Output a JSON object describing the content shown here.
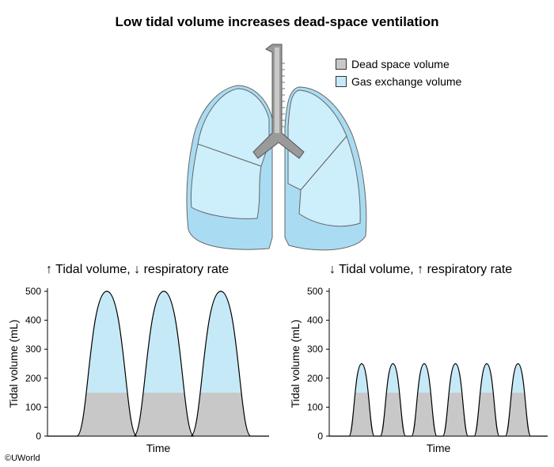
{
  "title": "Low tidal volume increases dead-space ventilation",
  "legend": [
    {
      "label": "Dead space volume",
      "color": "#c8c8c8"
    },
    {
      "label": "Gas exchange volume",
      "color": "#c6e9f7"
    }
  ],
  "copyright": "©UWorld",
  "colors": {
    "dead_space": "#c8c8c8",
    "gas_exchange": "#c6e9f7",
    "lung_light": "#cdeefb",
    "lung_dark": "#a9dcf3",
    "trachea": "#9a9a9a"
  },
  "chart_data": [
    {
      "type": "area",
      "title": "↑ Tidal volume, ↓ respiratory rate",
      "xlabel": "Time",
      "ylabel": "Tidal volume (mL)",
      "ylim": [
        0,
        500
      ],
      "yticks": [
        0,
        100,
        200,
        300,
        400,
        500
      ],
      "breaths": 3,
      "peak_volume": 500,
      "dead_space_volume": 150
    },
    {
      "type": "area",
      "title": "↓ Tidal volume, ↑ respiratory rate",
      "xlabel": "Time",
      "ylabel": "Tidal volume (mL)",
      "ylim": [
        0,
        500
      ],
      "yticks": [
        0,
        100,
        200,
        300,
        400,
        500
      ],
      "breaths": 6,
      "peak_volume": 250,
      "dead_space_volume": 150
    }
  ]
}
